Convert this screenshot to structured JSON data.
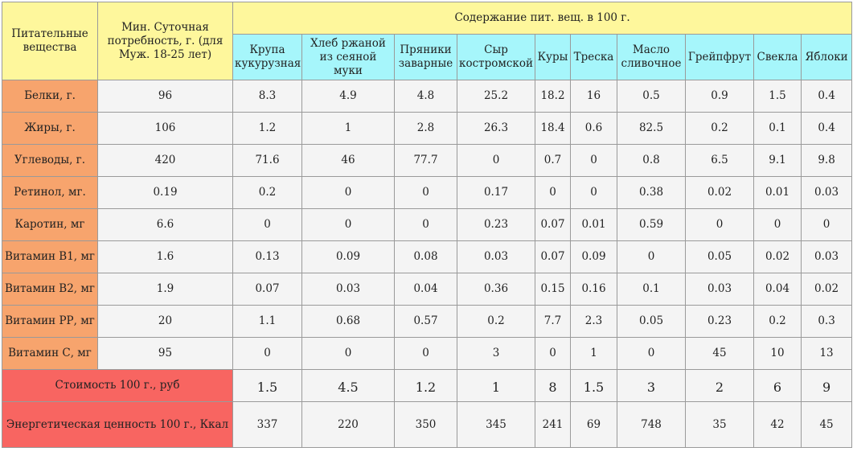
{
  "header": {
    "nutrients_label": "Питательные вещества",
    "min_requirement_label": "Мин. Суточная потребность, г. (для Муж. 18-25 лет)",
    "content_label": "Содержание пит. вещ. в 100 г."
  },
  "foods": [
    "Крупа кукурузная",
    "Хлеб ржаной из сеяной муки",
    "Пряники заварные",
    "Сыр костромской",
    "Куры",
    "Треска",
    "Масло сливочное",
    "Грейпфрут",
    "Свекла",
    "Яблоки"
  ],
  "rows": [
    {
      "name": "Белки, г.",
      "min": "96",
      "values": [
        "8.3",
        "4.9",
        "4.8",
        "25.2",
        "18.2",
        "16",
        "0.5",
        "0.9",
        "1.5",
        "0.4"
      ]
    },
    {
      "name": "Жиры, г.",
      "min": "106",
      "values": [
        "1.2",
        "1",
        "2.8",
        "26.3",
        "18.4",
        "0.6",
        "82.5",
        "0.2",
        "0.1",
        "0.4"
      ]
    },
    {
      "name": "Углеводы, г.",
      "min": "420",
      "values": [
        "71.6",
        "46",
        "77.7",
        "0",
        "0.7",
        "0",
        "0.8",
        "6.5",
        "9.1",
        "9.8"
      ]
    },
    {
      "name": "Ретинол, мг.",
      "min": "0.19",
      "values": [
        "0.2",
        "0",
        "0",
        "0.17",
        "0",
        "0",
        "0.38",
        "0.02",
        "0.01",
        "0.03"
      ]
    },
    {
      "name": "Каротин, мг",
      "min": "6.6",
      "values": [
        "0",
        "0",
        "0",
        "0.23",
        "0.07",
        "0.01",
        "0.59",
        "0",
        "0",
        "0"
      ]
    },
    {
      "name": "Витамин В1, мг",
      "min": "1.6",
      "values": [
        "0.13",
        "0.09",
        "0.08",
        "0.03",
        "0.07",
        "0.09",
        "0",
        "0.05",
        "0.02",
        "0.03"
      ]
    },
    {
      "name": "Витамин В2, мг",
      "min": "1.9",
      "values": [
        "0.07",
        "0.03",
        "0.04",
        "0.36",
        "0.15",
        "0.16",
        "0.1",
        "0.03",
        "0.04",
        "0.02"
      ]
    },
    {
      "name": "Витамин РР, мг",
      "min": "20",
      "values": [
        "1.1",
        "0.68",
        "0.57",
        "0.2",
        "7.7",
        "2.3",
        "0.05",
        "0.23",
        "0.2",
        "0.3"
      ]
    },
    {
      "name": "Витамин С, мг",
      "min": "95",
      "values": [
        "0",
        "0",
        "0",
        "3",
        "0",
        "1",
        "0",
        "45",
        "10",
        "13"
      ]
    }
  ],
  "cost": {
    "label": "Стоимость 100 г., руб",
    "values": [
      "1.5",
      "4.5",
      "1.2",
      "1",
      "8",
      "1.5",
      "3",
      "2",
      "6",
      "9"
    ]
  },
  "energy": {
    "label": "Энергетическая ценность 100 г., Ккал",
    "values": [
      "337",
      "220",
      "350",
      "345",
      "241",
      "69",
      "748",
      "35",
      "42",
      "45"
    ]
  },
  "colors": {
    "header_yellow": "#fef79c",
    "header_cyan": "#a6f6fb",
    "nutrient_orange": "#f7a46d",
    "summary_red": "#f86561",
    "cell_gray": "#f4f4f4"
  }
}
